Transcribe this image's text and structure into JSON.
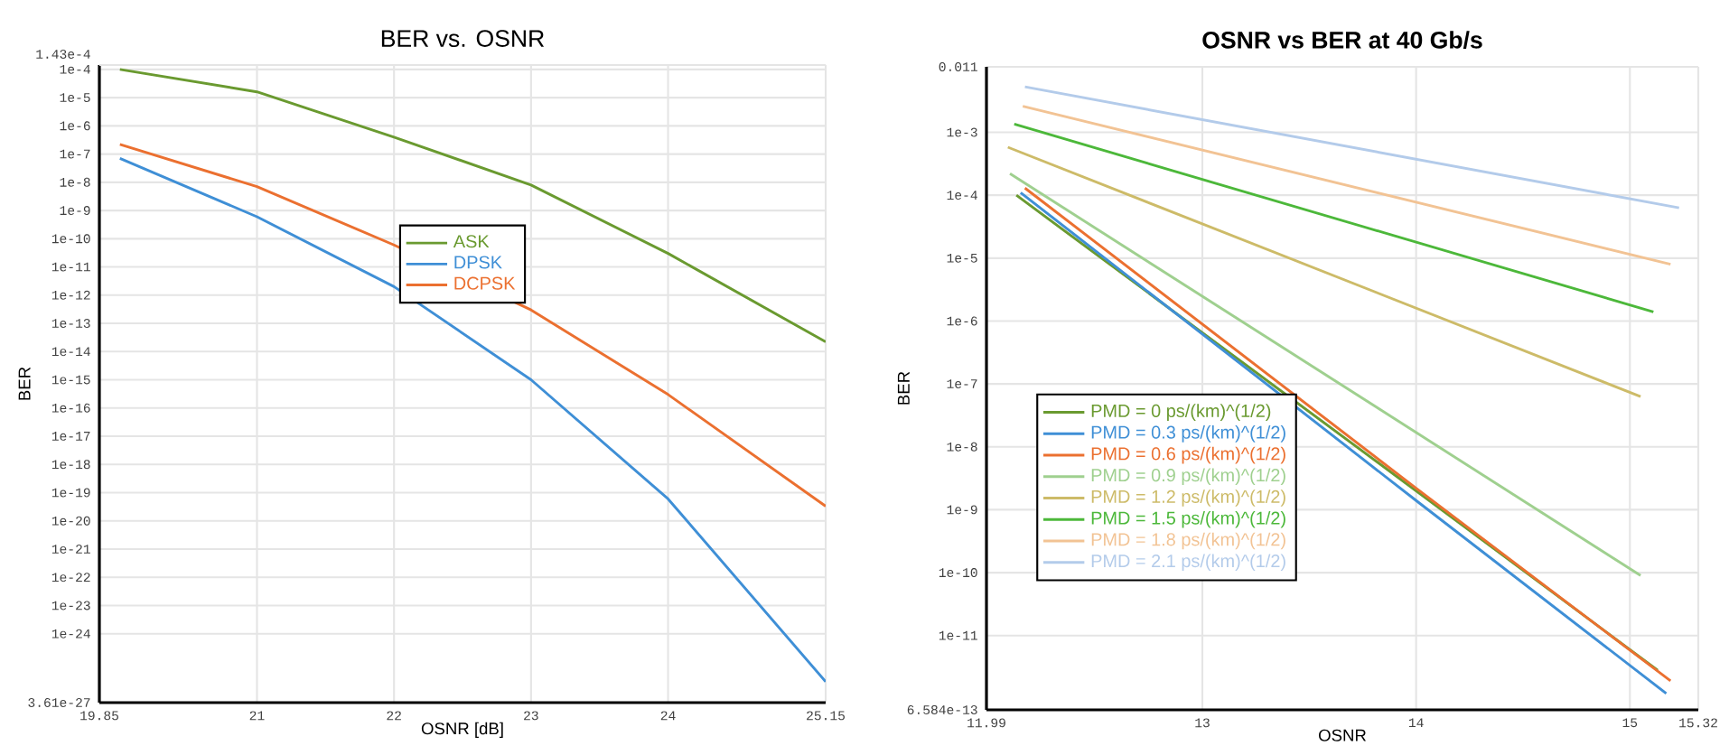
{
  "chart_data": [
    {
      "type": "line",
      "title": "BER vs. OSNR",
      "xlabel": "OSNR [dB]",
      "ylabel": "BER",
      "log": "y",
      "grid": true,
      "legend": "top",
      "xlim": [
        19.85,
        25.15
      ],
      "xticks": [
        19.85,
        21,
        22,
        23,
        24,
        25.15
      ],
      "ylim": [
        3.61e-27,
        0.000143
      ],
      "yticks": [
        {
          "value": 3.61e-27,
          "label": "3.61e-27"
        },
        {
          "value": 1e-24,
          "label": "1e-24"
        },
        {
          "value": 1e-23,
          "label": "1e-23"
        },
        {
          "value": 1e-22,
          "label": "1e-22"
        },
        {
          "value": 1e-21,
          "label": "1e-21"
        },
        {
          "value": 1e-20,
          "label": "1e-20"
        },
        {
          "value": 1e-19,
          "label": "1e-19"
        },
        {
          "value": 1e-18,
          "label": "1e-18"
        },
        {
          "value": 1e-17,
          "label": "1e-17"
        },
        {
          "value": 1e-16,
          "label": "1e-16"
        },
        {
          "value": 1e-15,
          "label": "1e-15"
        },
        {
          "value": 1e-14,
          "label": "1e-14"
        },
        {
          "value": 1e-13,
          "label": "1e-13"
        },
        {
          "value": 1e-12,
          "label": "1e-12"
        },
        {
          "value": 1e-11,
          "label": "1e-11"
        },
        {
          "value": 1e-10,
          "label": "1e-10"
        },
        {
          "value": 1e-09,
          "label": "1e-9"
        },
        {
          "value": 1e-08,
          "label": "1e-8"
        },
        {
          "value": 1e-07,
          "label": "1e-7"
        },
        {
          "value": 1e-06,
          "label": "1e-6"
        },
        {
          "value": 1e-05,
          "label": "1e-5"
        },
        {
          "value": 0.0001,
          "label": "1e-4"
        },
        {
          "value": 0.000143,
          "label": "1.43e-4"
        }
      ],
      "series": [
        {
          "name": "ASK",
          "color": "#6a9a30",
          "x": [
            20.0,
            21,
            22,
            23,
            24,
            25.15
          ],
          "values": [
            0.0001,
            1.6e-05,
            4e-07,
            8e-09,
            3e-11,
            2.2e-14
          ]
        },
        {
          "name": "DPSK",
          "color": "#3f8fd6",
          "x": [
            20.0,
            21,
            22,
            23,
            24,
            25.15
          ],
          "values": [
            7e-08,
            6e-10,
            2e-12,
            1e-15,
            6e-20,
            2e-26
          ]
        },
        {
          "name": "DCPSK",
          "color": "#eb7030",
          "x": [
            20.0,
            21,
            22,
            23,
            24,
            25.15
          ],
          "values": [
            2.2e-07,
            7e-09,
            6e-11,
            3e-13,
            3e-16,
            3.3e-20
          ]
        }
      ]
    },
    {
      "type": "line",
      "title": "OSNR vs BER at 40 Gb/s",
      "xlabel": "OSNR",
      "ylabel": "BER",
      "log": "y",
      "grid": true,
      "legend": "bottom left",
      "xlim": [
        11.99,
        15.32
      ],
      "xticks": [
        11.99,
        13,
        14,
        15,
        15.32
      ],
      "ylim": [
        6.584e-13,
        0.011
      ],
      "yticks": [
        {
          "value": 6.584e-13,
          "label": "6.584e-13"
        },
        {
          "value": 1e-11,
          "label": "1e-11"
        },
        {
          "value": 1e-10,
          "label": "1e-10"
        },
        {
          "value": 1e-09,
          "label": "1e-9"
        },
        {
          "value": 1e-08,
          "label": "1e-8"
        },
        {
          "value": 1e-07,
          "label": "1e-7"
        },
        {
          "value": 1e-06,
          "label": "1e-6"
        },
        {
          "value": 1e-05,
          "label": "1e-5"
        },
        {
          "value": 0.0001,
          "label": "1e-4"
        },
        {
          "value": 0.001,
          "label": "1e-3"
        },
        0.011
      ],
      "series": [
        {
          "name": "PMD = 0  ps/(km)^(1/2)",
          "color": "#6a9a30",
          "x": [
            12.13,
            14,
            15.13
          ],
          "values": [
            0.0001,
            2e-09,
            2.8e-12
          ]
        },
        {
          "name": "PMD = 0.3 ps/(km)^(1/2)",
          "color": "#3f8fd6",
          "x": [
            12.15,
            14,
            15.17
          ],
          "values": [
            0.00011,
            1.4e-09,
            1.2e-12
          ]
        },
        {
          "name": "PMD = 0.6 ps/(km)^(1/2)",
          "color": "#eb7030",
          "x": [
            12.17,
            14,
            15.19
          ],
          "values": [
            0.00013,
            2.2e-09,
            1.9e-12
          ]
        },
        {
          "name": "PMD = 0.9 ps/(km)^(1/2)",
          "color": "#9fd08f",
          "x": [
            12.1,
            15.05
          ],
          "values": [
            0.00022,
            9e-11
          ]
        },
        {
          "name": "PMD = 1.2 ps/(km)^(1/2)",
          "color": "#cdbb68",
          "x": [
            12.09,
            15.05
          ],
          "values": [
            0.00058,
            6.3e-08
          ]
        },
        {
          "name": "PMD = 1.5 ps/(km)^(1/2)",
          "color": "#4cb83a",
          "x": [
            12.12,
            15.11
          ],
          "values": [
            0.00135,
            1.4e-06
          ]
        },
        {
          "name": "PMD = 1.8 ps/(km)^(1/2)",
          "color": "#f2c394",
          "x": [
            12.16,
            15.19
          ],
          "values": [
            0.0026,
            8e-06
          ]
        },
        {
          "name": "PMD = 2.1 ps/(km)^(1/2)",
          "color": "#b3cbea",
          "x": [
            12.17,
            15.23
          ],
          "values": [
            0.0053,
            6.3e-05
          ]
        }
      ]
    }
  ]
}
